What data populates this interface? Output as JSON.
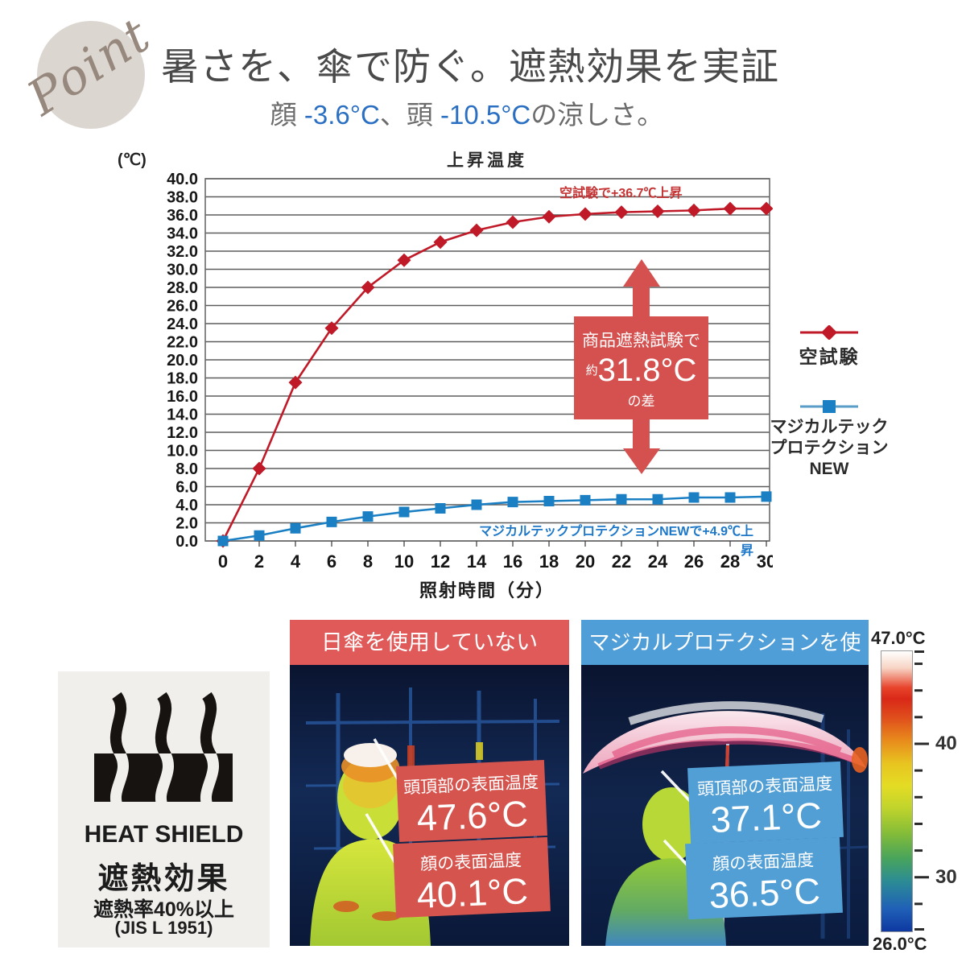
{
  "point_badge": {
    "label": "Point"
  },
  "header": {
    "title": "暑さを、傘で防ぐ。遮熱効果を実証",
    "subtitle_prefix": "顔 ",
    "subtitle_face_temp": "-3.6°C",
    "subtitle_mid": "、頭 ",
    "subtitle_head_temp": "-10.5°C",
    "subtitle_suffix": "の涼しさ。"
  },
  "chart_data": {
    "type": "line",
    "title": "上昇温度",
    "unit_label": "(℃)",
    "xlabel": "照射時間（分）",
    "x": [
      0,
      2,
      4,
      6,
      8,
      10,
      12,
      14,
      16,
      18,
      20,
      22,
      24,
      26,
      28,
      30
    ],
    "ylim": [
      0,
      40
    ],
    "ytick_step": 2,
    "grid": true,
    "series": [
      {
        "name": "空試験",
        "color": "#c01a28",
        "marker": "diamond",
        "values": [
          0,
          8.0,
          17.5,
          23.5,
          28.0,
          31.0,
          33.0,
          34.3,
          35.2,
          35.8,
          36.1,
          36.3,
          36.4,
          36.5,
          36.7,
          36.7
        ]
      },
      {
        "name": "マジカルテックプロテクション NEW",
        "color": "#1b7fc4",
        "marker": "square",
        "values": [
          0,
          0.6,
          1.4,
          2.1,
          2.7,
          3.2,
          3.6,
          4.0,
          4.3,
          4.4,
          4.5,
          4.6,
          4.6,
          4.8,
          4.8,
          4.9
        ]
      }
    ],
    "annotations": {
      "red": "空試験で+36.7℃上昇",
      "blue": "マジカルテックプロテクションNEWで+4.9℃上昇"
    },
    "diff_box": {
      "line1": "商品遮熱試験で",
      "approx": "約",
      "value": "31.8°C",
      "line3": "の差"
    },
    "legend": {
      "series1_label": "空試験",
      "series2_lines": [
        "マジカルテック",
        "プロテクション",
        "NEW"
      ]
    }
  },
  "heat_shield": {
    "name": "HEAT SHIELD",
    "effect": "遮熱効果",
    "rate": "遮熱率40%以上",
    "standard": "(JIS L 1951)"
  },
  "thermal": {
    "left": {
      "header": "日傘を使用していない",
      "labels": [
        {
          "title": "頭頂部の表面温度",
          "value": "47.6°C"
        },
        {
          "title": "顔の表面温度",
          "value": "40.1°C"
        }
      ]
    },
    "right": {
      "header": "マジカルプロテクションを使用",
      "labels": [
        {
          "title": "頭頂部の表面温度",
          "value": "37.1°C"
        },
        {
          "title": "顔の表面温度",
          "value": "36.5°C"
        }
      ]
    },
    "scale": {
      "max": "47.0°C",
      "min": "26.0°C",
      "ticks": [
        "40",
        "30"
      ]
    }
  },
  "colors": {
    "accent_red": "#d5514f",
    "accent_blue": "#4f9ed8",
    "series_red": "#c01a28",
    "series_blue": "#1b7fc4",
    "title_gray": "#4a4a4a",
    "subtitle_blue": "#2a6fc2"
  }
}
